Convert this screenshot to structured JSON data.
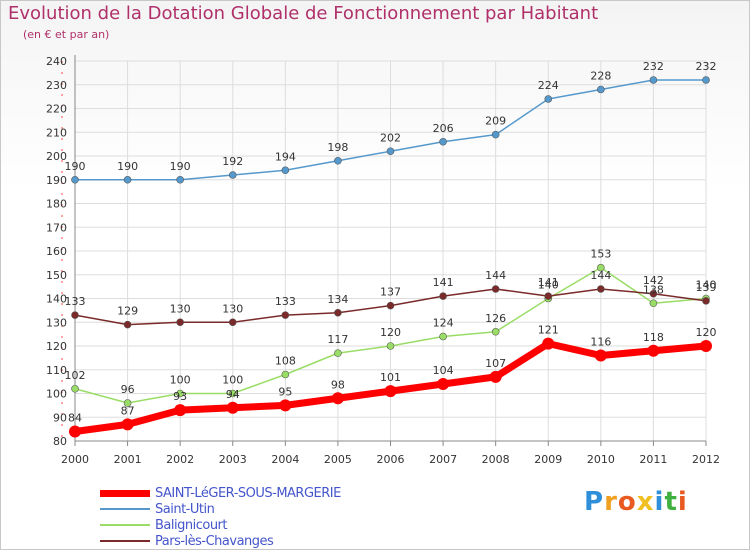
{
  "title": "Evolution de la Dotation Globale de Fonctionnement par Habitant",
  "subtitle": "(en € et par an)",
  "logo": {
    "letters": [
      "P",
      "r",
      "o",
      "x",
      "i",
      "t",
      "i"
    ],
    "colors": [
      "#2f8fd8",
      "#f0a020",
      "#e85a20",
      "#f0c020",
      "#2f8fd8",
      "#40b040",
      "#e85a20"
    ]
  },
  "chart_data": {
    "type": "line",
    "x": [
      2000,
      2001,
      2002,
      2003,
      2004,
      2005,
      2006,
      2007,
      2008,
      2009,
      2010,
      2011,
      2012
    ],
    "ylim": [
      80,
      240
    ],
    "yticks": [
      80,
      90,
      100,
      110,
      120,
      130,
      140,
      150,
      160,
      170,
      180,
      190,
      200,
      210,
      220,
      230,
      240
    ],
    "grid": true,
    "legend_position": "bottom-left",
    "series": [
      {
        "name": "SAINT-LéGER-SOUS-MARGERIE",
        "color": "#ff0000",
        "values": [
          84,
          87,
          93,
          94,
          95,
          98,
          101,
          104,
          107,
          121,
          116,
          118,
          120
        ]
      },
      {
        "name": "Saint-Utin",
        "color": "#5599cc",
        "values": [
          190,
          190,
          190,
          192,
          194,
          198,
          202,
          206,
          209,
          224,
          228,
          232,
          232
        ]
      },
      {
        "name": "Balignicourt",
        "color": "#99dd66",
        "values": [
          102,
          96,
          100,
          100,
          108,
          117,
          120,
          124,
          126,
          140,
          153,
          138,
          140
        ]
      },
      {
        "name": "Pars-lès-Chavanges",
        "color": "#7a2a2a",
        "values": [
          133,
          129,
          130,
          130,
          133,
          134,
          137,
          141,
          144,
          141,
          144,
          142,
          139
        ]
      }
    ]
  }
}
